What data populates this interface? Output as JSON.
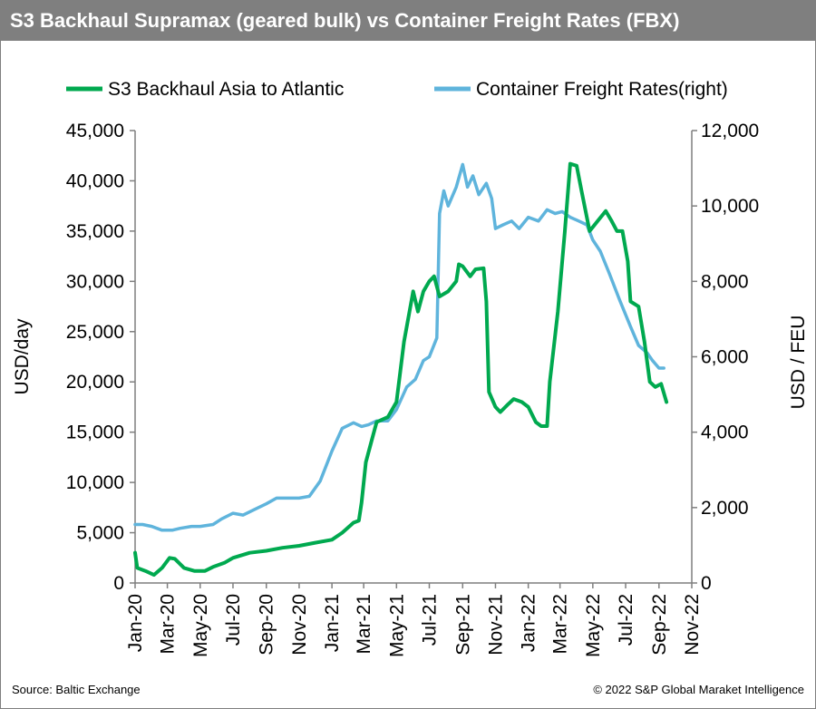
{
  "title": "S3 Backhaul Supramax (geared bulk) vs Container Freight Rates (FBX)",
  "source": "Source: Baltic Exchange",
  "copyright": "© 2022 S&P Global Maraket Intelligence",
  "colors": {
    "green": "#00a94f",
    "blue": "#5fb4dc",
    "title_bg": "#7f7f7f"
  },
  "chart_data": {
    "type": "line",
    "ylabel": "USD/day",
    "y2label": "USD / FEU",
    "ylim": [
      0,
      45000
    ],
    "y2lim": [
      0,
      12000
    ],
    "yticks": [
      "0",
      "5,000",
      "10,000",
      "15,000",
      "20,000",
      "25,000",
      "30,000",
      "35,000",
      "40,000",
      "45,000"
    ],
    "y2ticks": [
      "0",
      "2,000",
      "4,000",
      "6,000",
      "8,000",
      "10,000",
      "12,000"
    ],
    "xticks": [
      "Jan-20",
      "Mar-20",
      "May-20",
      "Jul-20",
      "Sep-20",
      "Nov-20",
      "Jan-21",
      "Mar-21",
      "May-21",
      "Jul-21",
      "Sep-21",
      "Nov-21",
      "Jan-22",
      "Mar-22",
      "May-22",
      "Jul-22",
      "Sep-22",
      "Nov-22"
    ],
    "legend_position": "top",
    "series": [
      {
        "name": "S3 Backhaul Asia to Atlantic",
        "axis": "left",
        "points": [
          [
            "2020-01-01",
            3000
          ],
          [
            "2020-01-05",
            1500
          ],
          [
            "2020-01-20",
            1200
          ],
          [
            "2020-02-05",
            800
          ],
          [
            "2020-02-20",
            1500
          ],
          [
            "2020-03-05",
            2500
          ],
          [
            "2020-03-15",
            2400
          ],
          [
            "2020-04-01",
            1500
          ],
          [
            "2020-04-20",
            1200
          ],
          [
            "2020-05-10",
            1200
          ],
          [
            "2020-05-25",
            1600
          ],
          [
            "2020-06-15",
            2000
          ],
          [
            "2020-07-01",
            2500
          ],
          [
            "2020-08-01",
            3000
          ],
          [
            "2020-09-01",
            3200
          ],
          [
            "2020-10-01",
            3500
          ],
          [
            "2020-11-01",
            3700
          ],
          [
            "2020-12-01",
            4000
          ],
          [
            "2021-01-01",
            4300
          ],
          [
            "2021-01-20",
            5000
          ],
          [
            "2021-02-10",
            6000
          ],
          [
            "2021-02-20",
            6200
          ],
          [
            "2021-02-25",
            8000
          ],
          [
            "2021-03-05",
            12000
          ],
          [
            "2021-03-15",
            14000
          ],
          [
            "2021-03-25",
            16000
          ],
          [
            "2021-04-15",
            16500
          ],
          [
            "2021-05-01",
            18000
          ],
          [
            "2021-05-15",
            24000
          ],
          [
            "2021-06-01",
            29000
          ],
          [
            "2021-06-10",
            27000
          ],
          [
            "2021-06-20",
            29000
          ],
          [
            "2021-07-01",
            30000
          ],
          [
            "2021-07-10",
            30500
          ],
          [
            "2021-07-20",
            28500
          ],
          [
            "2021-08-05",
            29000
          ],
          [
            "2021-08-20",
            30000
          ],
          [
            "2021-08-25",
            31700
          ],
          [
            "2021-09-01",
            31500
          ],
          [
            "2021-09-15",
            30500
          ],
          [
            "2021-09-25",
            31200
          ],
          [
            "2021-10-10",
            31300
          ],
          [
            "2021-10-15",
            28000
          ],
          [
            "2021-10-20",
            19000
          ],
          [
            "2021-11-01",
            17500
          ],
          [
            "2021-11-10",
            17000
          ],
          [
            "2021-11-25",
            17800
          ],
          [
            "2021-12-05",
            18300
          ],
          [
            "2021-12-20",
            18000
          ],
          [
            "2022-01-01",
            17500
          ],
          [
            "2022-01-15",
            16000
          ],
          [
            "2022-01-25",
            15600
          ],
          [
            "2022-02-05",
            15600
          ],
          [
            "2022-02-10",
            20000
          ],
          [
            "2022-02-25",
            27000
          ],
          [
            "2022-03-10",
            35000
          ],
          [
            "2022-03-20",
            41700
          ],
          [
            "2022-04-01",
            41500
          ],
          [
            "2022-04-10",
            39000
          ],
          [
            "2022-04-25",
            35000
          ],
          [
            "2022-05-10",
            36000
          ],
          [
            "2022-05-25",
            37000
          ],
          [
            "2022-06-05",
            36000
          ],
          [
            "2022-06-15",
            35000
          ],
          [
            "2022-06-25",
            35000
          ],
          [
            "2022-07-05",
            32000
          ],
          [
            "2022-07-10",
            28000
          ],
          [
            "2022-07-25",
            27500
          ],
          [
            "2022-08-05",
            24000
          ],
          [
            "2022-08-15",
            20000
          ],
          [
            "2022-08-25",
            19500
          ],
          [
            "2022-09-05",
            19800
          ],
          [
            "2022-09-15",
            18000
          ]
        ]
      },
      {
        "name": "Container Freight Rates(right)",
        "axis": "right",
        "points": [
          [
            "2020-01-01",
            1550
          ],
          [
            "2020-01-15",
            1550
          ],
          [
            "2020-02-01",
            1500
          ],
          [
            "2020-02-20",
            1400
          ],
          [
            "2020-03-10",
            1400
          ],
          [
            "2020-03-25",
            1450
          ],
          [
            "2020-04-15",
            1500
          ],
          [
            "2020-05-01",
            1500
          ],
          [
            "2020-05-25",
            1550
          ],
          [
            "2020-06-10",
            1700
          ],
          [
            "2020-07-01",
            1850
          ],
          [
            "2020-07-20",
            1800
          ],
          [
            "2020-08-10",
            1950
          ],
          [
            "2020-09-01",
            2100
          ],
          [
            "2020-09-20",
            2250
          ],
          [
            "2020-10-10",
            2250
          ],
          [
            "2020-11-01",
            2250
          ],
          [
            "2020-11-20",
            2300
          ],
          [
            "2020-12-10",
            2700
          ],
          [
            "2021-01-01",
            3500
          ],
          [
            "2021-01-20",
            4100
          ],
          [
            "2021-02-10",
            4250
          ],
          [
            "2021-02-25",
            4150
          ],
          [
            "2021-03-10",
            4200
          ],
          [
            "2021-03-25",
            4300
          ],
          [
            "2021-04-15",
            4300
          ],
          [
            "2021-05-01",
            4600
          ],
          [
            "2021-05-20",
            5200
          ],
          [
            "2021-06-05",
            5400
          ],
          [
            "2021-06-20",
            5900
          ],
          [
            "2021-07-01",
            6000
          ],
          [
            "2021-07-15",
            6500
          ],
          [
            "2021-07-20",
            9800
          ],
          [
            "2021-07-28",
            10400
          ],
          [
            "2021-08-05",
            10000
          ],
          [
            "2021-08-20",
            10500
          ],
          [
            "2021-09-01",
            11100
          ],
          [
            "2021-09-10",
            10500
          ],
          [
            "2021-09-20",
            10800
          ],
          [
            "2021-10-01",
            10300
          ],
          [
            "2021-10-15",
            10600
          ],
          [
            "2021-10-25",
            10200
          ],
          [
            "2021-11-01",
            9400
          ],
          [
            "2021-11-15",
            9500
          ],
          [
            "2021-12-01",
            9600
          ],
          [
            "2021-12-15",
            9400
          ],
          [
            "2022-01-01",
            9700
          ],
          [
            "2022-01-20",
            9600
          ],
          [
            "2022-02-05",
            9900
          ],
          [
            "2022-02-20",
            9800
          ],
          [
            "2022-03-05",
            9850
          ],
          [
            "2022-03-20",
            9700
          ],
          [
            "2022-04-05",
            9600
          ],
          [
            "2022-04-20",
            9500
          ],
          [
            "2022-05-01",
            9100
          ],
          [
            "2022-05-15",
            8800
          ],
          [
            "2022-06-01",
            8200
          ],
          [
            "2022-06-20",
            7500
          ],
          [
            "2022-07-10",
            6800
          ],
          [
            "2022-07-25",
            6300
          ],
          [
            "2022-08-10",
            6100
          ],
          [
            "2022-08-20",
            5900
          ],
          [
            "2022-09-01",
            5700
          ],
          [
            "2022-09-10",
            5700
          ]
        ]
      }
    ]
  }
}
